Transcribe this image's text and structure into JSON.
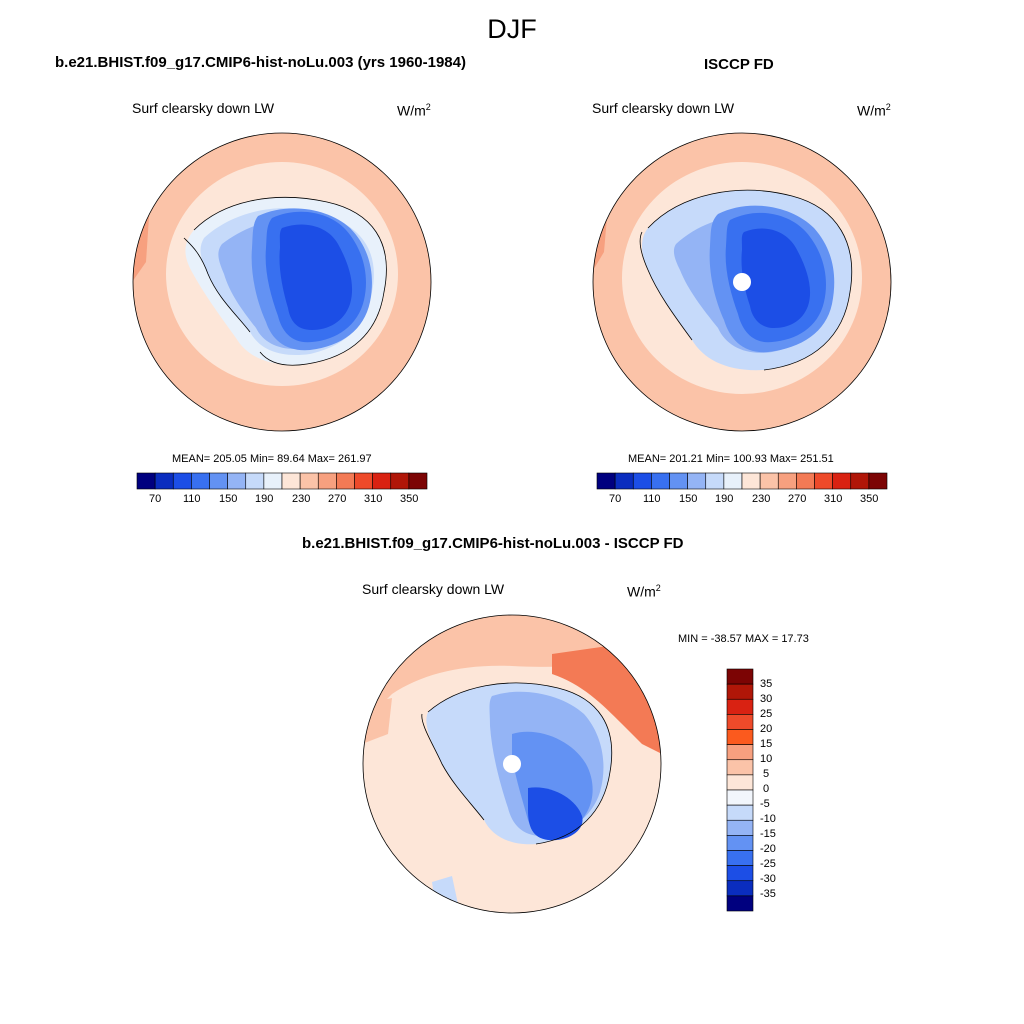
{
  "figure": {
    "title": "DJF"
  },
  "panels": [
    {
      "title": "b.e21.BHIST.f09_g17.CMIP6-hist-noLu.003 (yrs 1960-1984)",
      "variable": "Surf clearsky down LW",
      "units": "W/m",
      "units_sup": "2",
      "stats": "MEAN= 205.05  Min=  89.64  Max= 261.97",
      "colorbar": {
        "levels": [
          "70",
          "110",
          "150",
          "190",
          "230",
          "270",
          "310",
          "350"
        ],
        "colors": [
          "#00007f",
          "#0a2dbf",
          "#1c4ee6",
          "#3870f0",
          "#6392f3",
          "#94b4f5",
          "#c6dafa",
          "#e8f1fb",
          "#fde6d8",
          "#fbc3a8",
          "#f7a07f",
          "#f37a55",
          "#ee4a2a",
          "#d92212",
          "#b01608",
          "#7c0404"
        ]
      },
      "map": {
        "pole_hole": false
      }
    },
    {
      "title": "ISCCP FD",
      "variable": "Surf clearsky down LW",
      "units": "W/m",
      "units_sup": "2",
      "stats": "MEAN= 201.21  Min= 100.93  Max= 251.51",
      "colorbar": {
        "levels": [
          "70",
          "110",
          "150",
          "190",
          "230",
          "270",
          "310",
          "350"
        ],
        "colors": [
          "#00007f",
          "#0a2dbf",
          "#1c4ee6",
          "#3870f0",
          "#6392f3",
          "#94b4f5",
          "#c6dafa",
          "#e8f1fb",
          "#fde6d8",
          "#fbc3a8",
          "#f7a07f",
          "#f37a55",
          "#ee4a2a",
          "#d92212",
          "#b01608",
          "#7c0404"
        ]
      },
      "map": {
        "pole_hole": true
      }
    },
    {
      "title": "b.e21.BHIST.f09_g17.CMIP6-hist-noLu.003 - ISCCP FD",
      "variable": "Surf clearsky down LW",
      "units": "W/m",
      "units_sup": "2",
      "stats": "MIN = -38.57 MAX =  17.73",
      "colorbar": {
        "levels": [
          "35",
          "30",
          "25",
          "20",
          "15",
          "10",
          "5",
          "0",
          "-5",
          "-10",
          "-15",
          "-20",
          "-25",
          "-30",
          "-35"
        ],
        "colors": [
          "#7c0404",
          "#b01608",
          "#d92212",
          "#ee4a2a",
          "#fb5a1e",
          "#f7a07f",
          "#fbc3a8",
          "#fde6d8",
          "#f2f6fc",
          "#c6dafa",
          "#94b4f5",
          "#6392f3",
          "#3870f0",
          "#1c4ee6",
          "#0a2dbf",
          "#00007f"
        ]
      },
      "map": {
        "pole_hole": true
      }
    }
  ],
  "colors": {
    "ocean_warm": "#fde6d8",
    "ocean_mid": "#fbc3a8",
    "ocean_hot": "#f37a55",
    "ice_edge": "#c6dafa",
    "ice_mid": "#6392f3",
    "ice_deep": "#1c4ee6",
    "ice_core": "#0a2dbf"
  }
}
